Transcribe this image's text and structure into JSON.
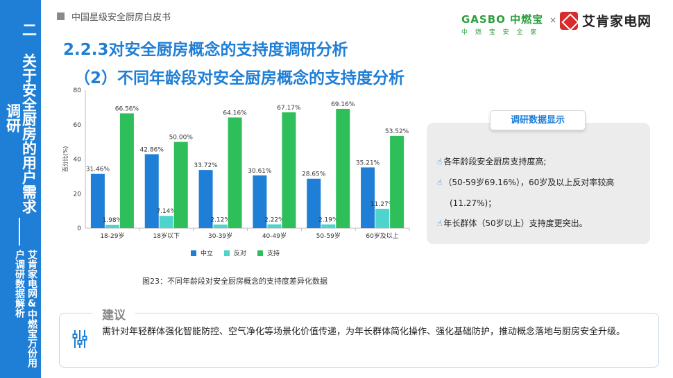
{
  "sidebar": {
    "main": "二 关于安全厨房的用户需求调研",
    "sub": "艾肯家电网&中燃宝万份用户调研数据解析"
  },
  "header": {
    "book_title": "中国星级安全厨房白皮书",
    "logo1_name": "GASBO 中燃宝",
    "logo1_slogan": "中 燃 宝 安 全 家",
    "cross": "×",
    "logo2_name": "艾肯家电网"
  },
  "section_title": "2.2.3对安全厨房概念的支持度调研分析",
  "sub_title": "（2）不同年龄段对安全厨房概念的支持度分析",
  "chart_data": {
    "type": "bar",
    "categories": [
      "18-29岁",
      "18岁以下",
      "30-39岁",
      "40-49岁",
      "50-59岁",
      "60岁及以上"
    ],
    "series": [
      {
        "name": "中立",
        "color": "#1f7fd6",
        "values": [
          31.46,
          42.86,
          33.72,
          30.61,
          28.65,
          35.21
        ],
        "labels": [
          "31.46%",
          "42.86%",
          "33.72%",
          "30.61%",
          "28.65%",
          "35.21%"
        ]
      },
      {
        "name": "反对",
        "color": "#4dd4cc",
        "values": [
          1.98,
          7.14,
          2.12,
          2.22,
          2.19,
          11.27
        ],
        "labels": [
          "1.98%",
          "7.14%",
          "2.12%",
          "2.22%",
          "2.19%",
          "11.27%"
        ]
      },
      {
        "name": "支持",
        "color": "#2fbf5a",
        "values": [
          66.56,
          50.0,
          64.16,
          67.17,
          69.16,
          53.52
        ],
        "labels": [
          "66.56%",
          "50.00%",
          "64.16%",
          "67.17%",
          "69.16%",
          "53.52%"
        ]
      }
    ],
    "ylabel": "百分比(%)",
    "ylim": [
      0,
      80
    ],
    "yticks": [
      "0",
      "20",
      "40",
      "60",
      "80"
    ],
    "grid": false,
    "legend": "bottom"
  },
  "caption": "图23：不同年龄段对安全厨房概念的支持度差异化数据",
  "panel": {
    "tag": "调研数据显示",
    "line1": "各年龄段安全厨房支持度高;",
    "line2": "（50-59岁69.16%），60岁及以上反对率较高",
    "line3": "(11.27%)；",
    "line4": "年长群体（50岁以上）支持度更突出。"
  },
  "advice": {
    "title": "建议",
    "text": "需针对年轻群体强化智能防控、空气净化等场景化价值传递，为年长群体简化操作、强化基础防护，推动概念落地与厨房安全升级。"
  }
}
